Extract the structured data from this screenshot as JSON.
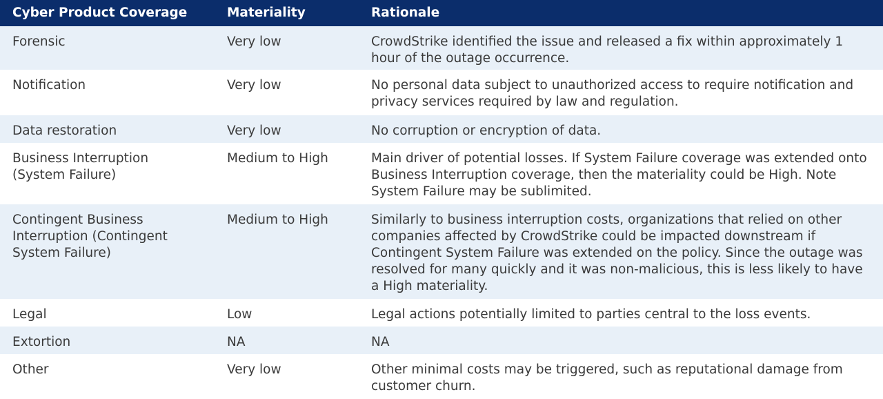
{
  "header": {
    "col1": "Cyber Product Coverage",
    "col2": "Materiality",
    "col3": "Rationale"
  },
  "rows": [
    {
      "coverage": "Forensic",
      "materiality": "Very low",
      "rationale": "CrowdStrike identified the issue and released a fix within approximately 1\nhour of the outage occurrence."
    },
    {
      "coverage": "Notification",
      "materiality": "Very low",
      "rationale": "No personal data subject to unauthorized access to require notification and\nprivacy services required by law and regulation."
    },
    {
      "coverage": "Data restoration",
      "materiality": "Very low",
      "rationale": "No corruption or encryption of data."
    },
    {
      "coverage": "Business Interruption\n(System Failure)",
      "materiality": "Medium to High",
      "rationale": "Main driver of potential losses. If System Failure coverage was extended onto\nBusiness Interruption coverage, then the materiality could be High. Note\nSystem Failure may be sublimited."
    },
    {
      "coverage": "Contingent Business\nInterruption (Contingent\nSystem Failure)",
      "materiality": "Medium to High",
      "rationale": "Similarly to business interruption costs, organizations that relied on other\ncompanies affected by CrowdStrike could be impacted downstream if\nContingent System Failure was extended on the policy. Since the outage was\nresolved for many quickly and it was non-malicious, this is less likely to have\na High materiality."
    },
    {
      "coverage": "Legal",
      "materiality": "Low",
      "rationale": "Legal actions potentially limited to parties central to the loss events."
    },
    {
      "coverage": "Extortion",
      "materiality": "NA",
      "rationale": "NA"
    },
    {
      "coverage": "Other",
      "materiality": "Very low",
      "rationale": "Other minimal costs may be triggered, such as reputational damage from\ncustomer churn."
    }
  ],
  "colors": {
    "header_bg": "#0b2d6b",
    "row_shade": "#e8f0f8",
    "text": "#3a3a3a"
  }
}
